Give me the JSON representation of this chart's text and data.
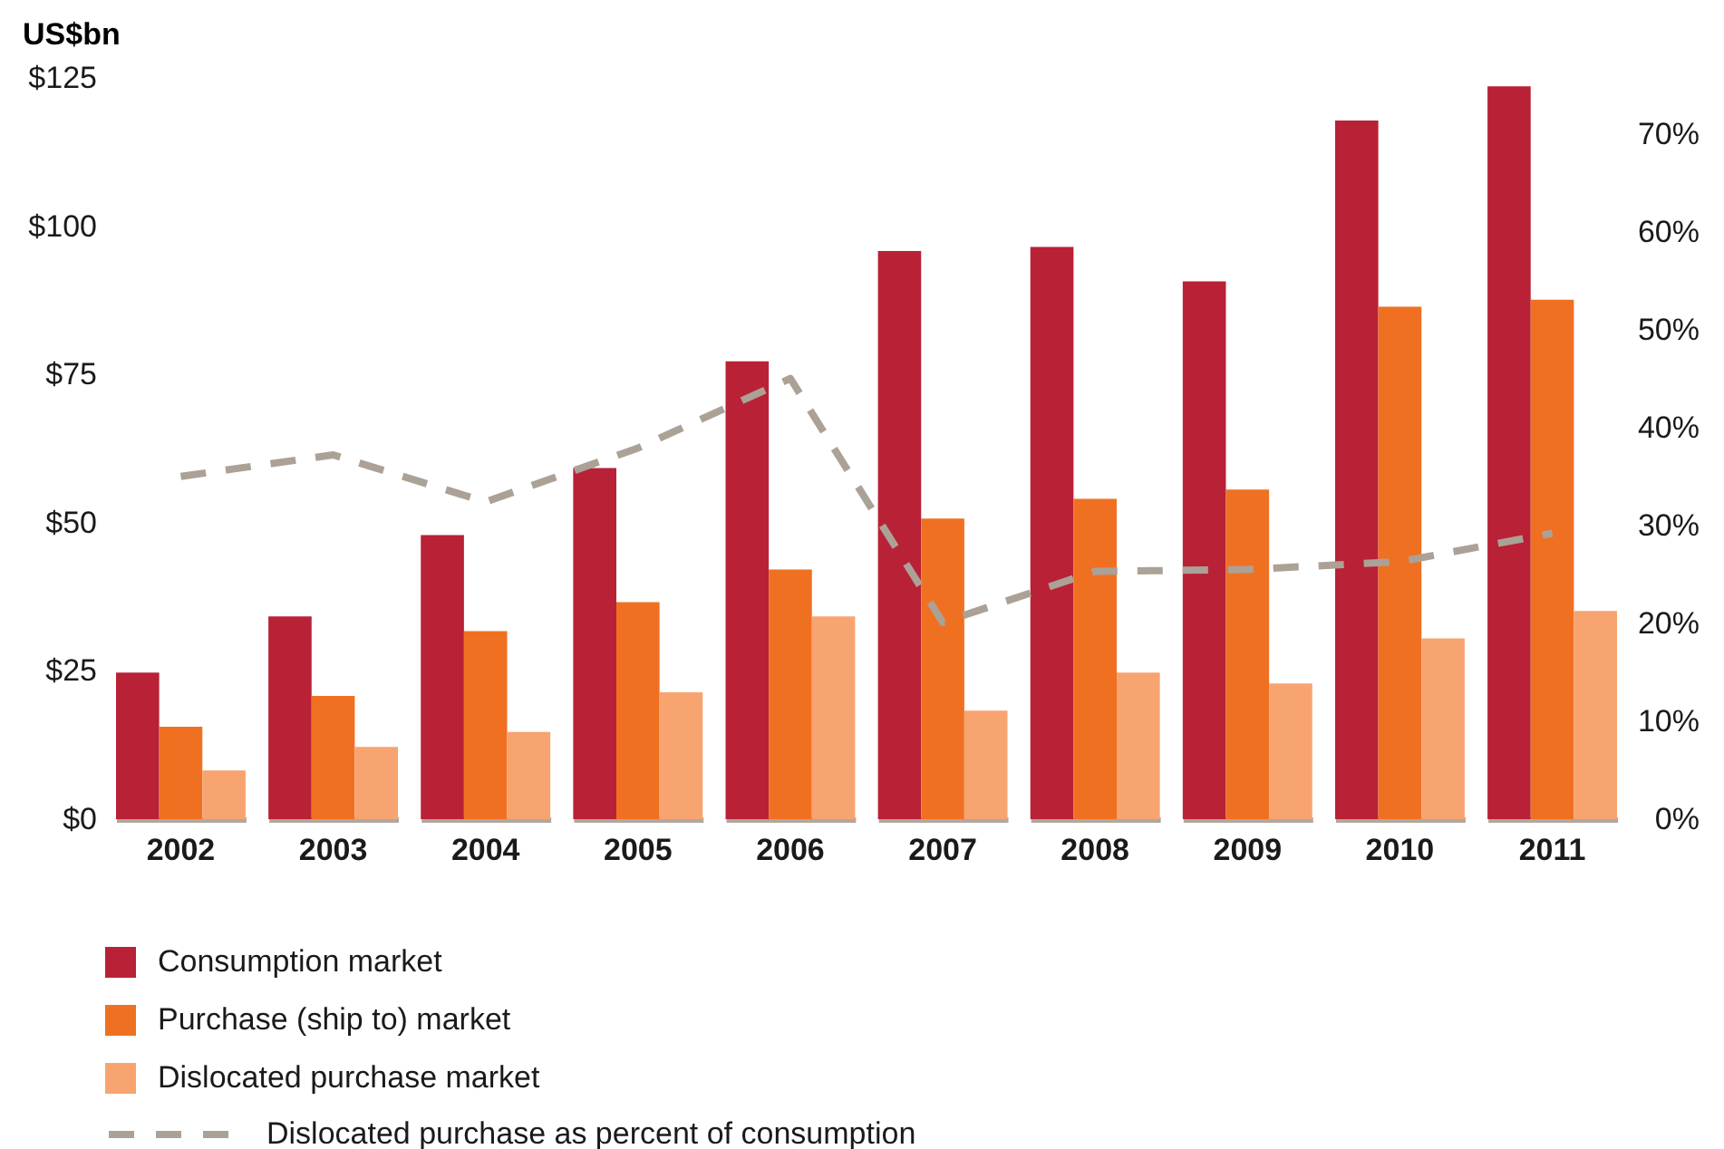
{
  "chart_data": {
    "type": "bar",
    "ylabel": "US$bn",
    "categories": [
      "2002",
      "2003",
      "2004",
      "2005",
      "2006",
      "2007",
      "2008",
      "2009",
      "2010",
      "2011"
    ],
    "series": [
      {
        "name": "Consumption market",
        "color": "#b92136",
        "values": [
          24.7,
          34.2,
          47.9,
          59.2,
          77.2,
          95.8,
          96.5,
          90.7,
          117.8,
          123.6
        ]
      },
      {
        "name": "Purchase (ship to) market",
        "color": "#f07022",
        "values": [
          15.6,
          20.8,
          31.7,
          36.6,
          42.1,
          50.7,
          54.0,
          55.6,
          86.4,
          87.6
        ]
      },
      {
        "name": "Dislocated purchase market",
        "color": "#f8a470",
        "values": [
          8.2,
          12.2,
          14.7,
          21.4,
          34.2,
          18.3,
          24.7,
          22.9,
          30.5,
          35.1
        ]
      },
      {
        "name": "Dislocated purchase as percent of consumption",
        "type": "line",
        "axis": "y2",
        "color": "#aca196",
        "line_style": "dashed",
        "values": [
          35.0,
          37.2,
          32.4,
          37.9,
          45.0,
          20.1,
          25.3,
          25.5,
          26.3,
          29.2
        ]
      }
    ],
    "ylim": [
      0,
      125
    ],
    "yticks": [
      {
        "value": 0,
        "label": "$0"
      },
      {
        "value": 25,
        "label": "$25"
      },
      {
        "value": 50,
        "label": "$50"
      },
      {
        "value": 75,
        "label": "$75"
      },
      {
        "value": 100,
        "label": "$100"
      },
      {
        "value": 125,
        "label": "$125"
      }
    ],
    "y2lim": [
      0,
      75.7
    ],
    "y2ticks": [
      {
        "value": 0,
        "label": "0%"
      },
      {
        "value": 10,
        "label": "10%"
      },
      {
        "value": 20,
        "label": "20%"
      },
      {
        "value": 30,
        "label": "30%"
      },
      {
        "value": 40,
        "label": "40%"
      },
      {
        "value": 50,
        "label": "50%"
      },
      {
        "value": 60,
        "label": "60%"
      },
      {
        "value": 70,
        "label": "70%"
      }
    ],
    "grid": false,
    "legend": "bottom left"
  }
}
